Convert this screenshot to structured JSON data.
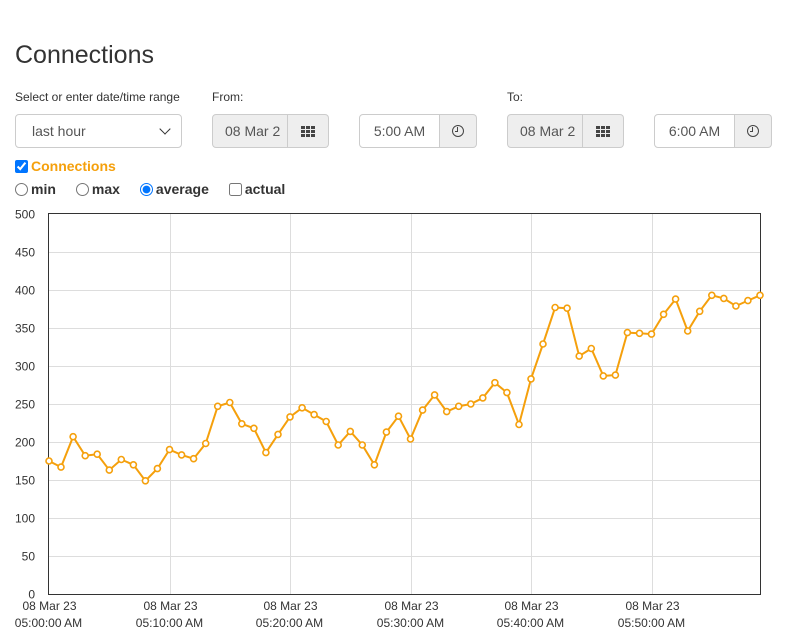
{
  "page": {
    "title": "Connections"
  },
  "range": {
    "label": "Select or enter date/time range",
    "selected": "last hour"
  },
  "from": {
    "label": "From:",
    "date": "08 Mar 2",
    "time": "5:00 AM"
  },
  "to": {
    "label": "To:",
    "date": "08 Mar 2",
    "time": "6:00 AM"
  },
  "series_toggle": {
    "label": "Connections",
    "checked": true
  },
  "modes": {
    "min": "min",
    "max": "max",
    "average": "average",
    "actual": "actual",
    "selected": "average"
  },
  "icons": {
    "calendar": "calendar-grid-icon",
    "clock": "clock-icon"
  },
  "colors": {
    "series": "#f5a00c",
    "grid": "#dddddd",
    "axis": "#333333"
  },
  "chart_data": {
    "type": "line",
    "ylim": [
      0,
      500
    ],
    "yticks": [
      "0",
      "50",
      "100",
      "150",
      "200",
      "250",
      "300",
      "350",
      "400",
      "450",
      "500"
    ],
    "xticks": [
      {
        "date": "08 Mar 23",
        "time": "05:00:00 AM"
      },
      {
        "date": "08 Mar 23",
        "time": "05:10:00 AM"
      },
      {
        "date": "08 Mar 23",
        "time": "05:20:00 AM"
      },
      {
        "date": "08 Mar 23",
        "time": "05:30:00 AM"
      },
      {
        "date": "08 Mar 23",
        "time": "05:40:00 AM"
      },
      {
        "date": "08 Mar 23",
        "time": "05:50:00 AM"
      }
    ],
    "grid": true,
    "series": [
      {
        "values": [
          175,
          167,
          207,
          182,
          184,
          163,
          177,
          170,
          149,
          165,
          190,
          183,
          178,
          198,
          247,
          252,
          224,
          218,
          186,
          210,
          233,
          245,
          236,
          227,
          196,
          214,
          196,
          170,
          213,
          234,
          204,
          242,
          262,
          240,
          247,
          250,
          258,
          278,
          265,
          223,
          283,
          329,
          377,
          376,
          313,
          323,
          287,
          288,
          344,
          343,
          342,
          368,
          388,
          346,
          372,
          393,
          389,
          379,
          386,
          393
        ]
      }
    ]
  }
}
